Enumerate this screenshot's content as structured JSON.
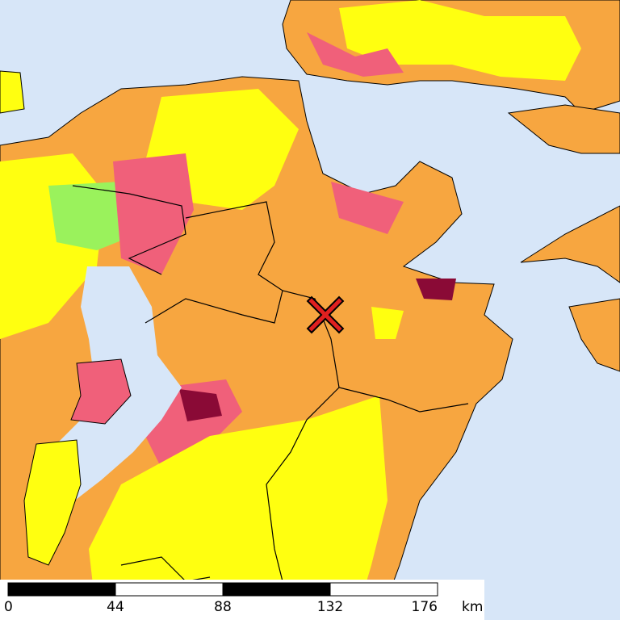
{
  "scale": {
    "ticks": [
      0,
      44,
      88,
      132,
      176
    ],
    "unit": "km"
  }
}
